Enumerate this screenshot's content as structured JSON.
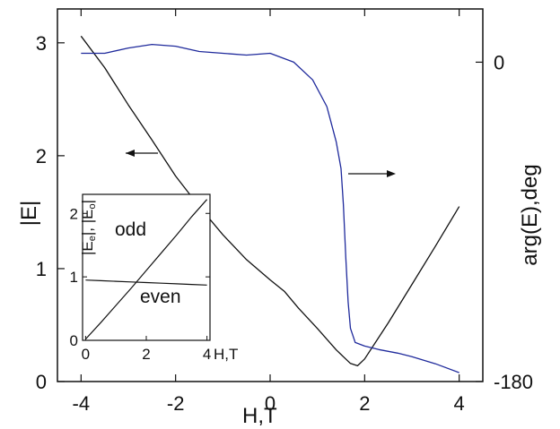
{
  "chart_data": [
    {
      "type": "line",
      "title": "",
      "xlabel": "H,T",
      "ylabel_left": "|E|",
      "ylabel_right": "arg(E),deg",
      "xlim": [
        -4.5,
        4.5
      ],
      "ylim_left": [
        0,
        3.3
      ],
      "ylim_right": [
        -180,
        30
      ],
      "x_ticks": [
        -4,
        -2,
        0,
        2,
        4
      ],
      "x_tick_labels": [
        "-4",
        "-2",
        "0",
        "2",
        "4"
      ],
      "y_left_ticks": [
        0,
        1,
        2,
        3
      ],
      "y_left_tick_labels": [
        "0",
        "1",
        "2",
        "3"
      ],
      "y_right_ticks": [
        0,
        -180
      ],
      "y_right_tick_labels": [
        "0",
        "-180"
      ],
      "grid": false,
      "series": [
        {
          "axis": "left",
          "color": "#111111",
          "x": [
            -4.0,
            -3.5,
            -3.0,
            -2.5,
            -2.0,
            -1.5,
            -1.0,
            -0.5,
            0.0,
            0.3,
            0.6,
            1.0,
            1.4,
            1.7,
            1.85,
            2.0,
            2.5,
            3.0,
            3.5,
            4.0
          ],
          "y": [
            3.06,
            2.78,
            2.45,
            2.14,
            1.82,
            1.55,
            1.3,
            1.08,
            0.9,
            0.8,
            0.65,
            0.47,
            0.28,
            0.16,
            0.14,
            0.2,
            0.52,
            0.86,
            1.2,
            1.55
          ]
        },
        {
          "axis": "right",
          "color": "#1f2a9c",
          "x": [
            -4.0,
            -3.5,
            -3.0,
            -2.5,
            -2.0,
            -1.5,
            -1.0,
            -0.5,
            0.0,
            0.5,
            0.9,
            1.2,
            1.4,
            1.5,
            1.55,
            1.6,
            1.65,
            1.7,
            1.8,
            2.0,
            2.3,
            2.7,
            3.0,
            3.5,
            4.0
          ],
          "y": [
            5,
            5,
            8,
            10,
            9,
            6,
            5,
            4,
            5,
            0,
            -10,
            -25,
            -45,
            -60,
            -80,
            -110,
            -135,
            -150,
            -158,
            -160,
            -162,
            -164,
            -166,
            -170,
            -175
          ]
        }
      ],
      "annotations": [
        {
          "text": "←",
          "meaning": "arrow pointing to left axis"
        },
        {
          "text": "→",
          "meaning": "arrow pointing to right axis"
        }
      ]
    },
    {
      "type": "line",
      "title": "",
      "inset": true,
      "xlabel": "H,T",
      "ylabel": "|Ee|, |Eo|",
      "ylabel_e_subscript": "e",
      "ylabel_o_subscript": "o",
      "xlim": [
        -0.1,
        4.1
      ],
      "ylim": [
        0,
        2.3
      ],
      "x_ticks": [
        0,
        2,
        4
      ],
      "x_tick_labels": [
        "0",
        "2",
        "4"
      ],
      "y_ticks": [
        0,
        1,
        2
      ],
      "y_tick_labels": [
        "0",
        "1",
        "2"
      ],
      "series": [
        {
          "name": "odd",
          "color": "#111111",
          "x": [
            0,
            0.5,
            1.0,
            1.5,
            2.0,
            2.5,
            3.0,
            3.5,
            4.0
          ],
          "y": [
            0.02,
            0.28,
            0.55,
            0.82,
            1.1,
            1.38,
            1.66,
            1.95,
            2.22
          ]
        },
        {
          "name": "even",
          "color": "#111111",
          "x": [
            0,
            0.5,
            1.0,
            1.5,
            2.0,
            2.5,
            3.0,
            3.5,
            4.0
          ],
          "y": [
            0.95,
            0.94,
            0.93,
            0.92,
            0.91,
            0.9,
            0.89,
            0.88,
            0.87
          ]
        }
      ]
    }
  ]
}
